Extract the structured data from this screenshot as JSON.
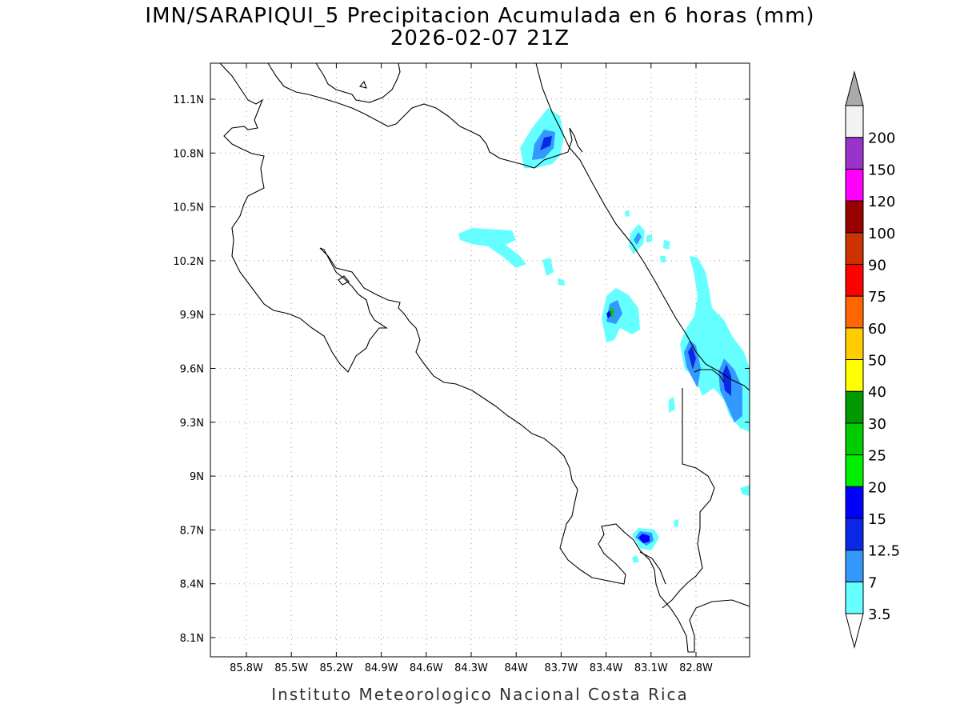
{
  "header": {
    "title_line1": "IMN/SARAPIQUI_5 Precipitacion Acumulada en 6 horas (mm)",
    "title_line2": "2026-02-07 21Z"
  },
  "footer": {
    "credit": "Instituto Meteorologico Nacional Costa Rica"
  },
  "map": {
    "lon_ticks": [
      "85.8W",
      "85.5W",
      "85.2W",
      "84.9W",
      "84.6W",
      "84.3W",
      "84W",
      "83.7W",
      "83.4W",
      "83.1W",
      "82.8W"
    ],
    "lat_ticks": [
      "11.1N",
      "10.8N",
      "10.5N",
      "10.2N",
      "9.9N",
      "9.6N",
      "9.3N",
      "9N",
      "8.7N",
      "8.4N",
      "8.1N"
    ],
    "grid": "dotted",
    "coastline_color": "#000000"
  },
  "colorbar": {
    "levels": [
      "3.5",
      "7",
      "12.5",
      "15",
      "20",
      "25",
      "30",
      "40",
      "50",
      "60",
      "75",
      "90",
      "100",
      "120",
      "150",
      "200"
    ],
    "colors": [
      "#66ffff",
      "#3399ff",
      "#0a28e6",
      "#0000ff",
      "#00ee00",
      "#00cc00",
      "#009900",
      "#ffff00",
      "#ffcc00",
      "#ff6600",
      "#ff0000",
      "#cc3300",
      "#990000",
      "#ff00ff",
      "#9933cc",
      "#f2f2f2",
      "#aaaaaa"
    ]
  }
}
